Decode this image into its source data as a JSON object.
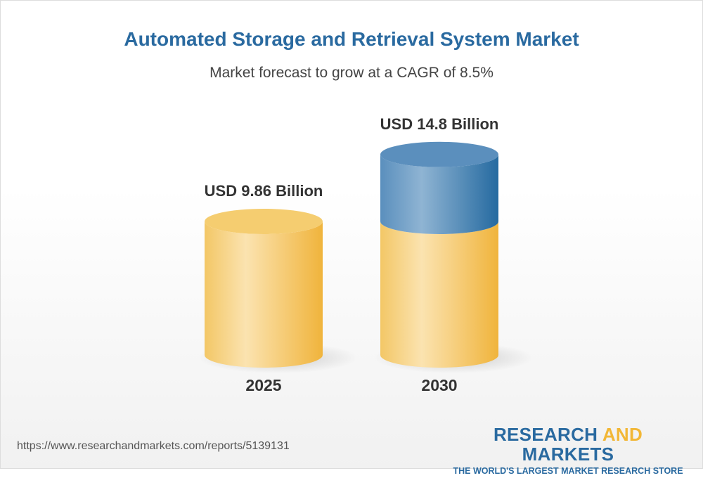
{
  "title": "Automated Storage and Retrieval System Market",
  "subtitle": "Market forecast to grow at a CAGR of 8.5%",
  "chart_data": {
    "type": "bar",
    "style": "3d-cylinder",
    "categories": [
      "2025",
      "2030"
    ],
    "values": [
      9.86,
      14.8
    ],
    "data_labels": [
      "USD 9.86 Billion",
      "USD 14.8 Billion"
    ],
    "colors": {
      "base": "#f2c14e",
      "growth": "#2f6ea3"
    }
  },
  "footer": {
    "url": "https://www.researchandmarkets.com/reports/5139131",
    "logo": {
      "part1": "RESEARCH",
      "part2": "AND",
      "part3": "MARKETS",
      "tagline": "THE WORLD'S LARGEST MARKET RESEARCH STORE"
    }
  }
}
